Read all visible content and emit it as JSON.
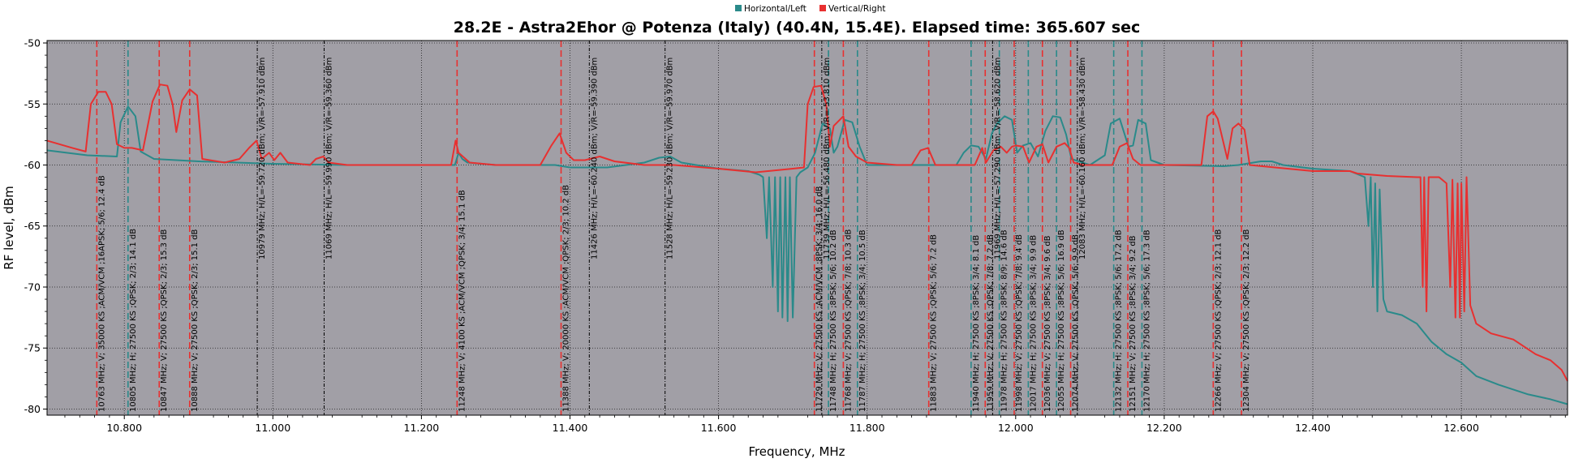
{
  "colors": {
    "horizontal": "#2a8a8a",
    "vertical": "#e83030",
    "plot_background": "#a19fa6",
    "grid": "#000000",
    "frame": "#000000"
  },
  "chart_data": {
    "type": "line",
    "title": "28.2E - Astra2Ehor @ Potenza (Italy) (40.4N, 15.4E). Elapsed time: 365.607 sec",
    "xlabel": "Frequency, MHz",
    "ylabel": "RF level, dBm",
    "xlim": [
      10696,
      12743
    ],
    "ylim": [
      -80.5,
      -49.8
    ],
    "x_ticks": [
      10800,
      11000,
      11200,
      11400,
      11600,
      11800,
      12000,
      12200,
      12400,
      12600
    ],
    "x_tick_labels": [
      "10.800",
      "11.000",
      "11.200",
      "11.400",
      "11.600",
      "11.800",
      "12.000",
      "12.200",
      "12.400",
      "12.600"
    ],
    "y_ticks": [
      -50,
      -55,
      -60,
      -65,
      -70,
      -75,
      -80
    ],
    "y_tick_labels": [
      "-50",
      "-55",
      "-60",
      "-65",
      "-70",
      "-75",
      "-80"
    ],
    "grid": true,
    "legend": "top-center",
    "series": [
      {
        "name": "Horizontal/Left",
        "color": "#2a8a8a",
        "points": [
          [
            10696,
            -58.8
          ],
          [
            10750,
            -59.2
          ],
          [
            10790,
            -59.3
          ],
          [
            10795,
            -56.5
          ],
          [
            10805,
            -55.2
          ],
          [
            10815,
            -56.0
          ],
          [
            10822,
            -58.9
          ],
          [
            10840,
            -59.5
          ],
          [
            10900,
            -59.7
          ],
          [
            11000,
            -59.9
          ],
          [
            11100,
            -60.0
          ],
          [
            11200,
            -60.0
          ],
          [
            11245,
            -60.0
          ],
          [
            11250,
            -59.0
          ],
          [
            11255,
            -59.5
          ],
          [
            11262,
            -59.8
          ],
          [
            11300,
            -60.0
          ],
          [
            11380,
            -60.0
          ],
          [
            11400,
            -60.2
          ],
          [
            11450,
            -60.2
          ],
          [
            11500,
            -59.8
          ],
          [
            11520,
            -59.4
          ],
          [
            11535,
            -59.3
          ],
          [
            11550,
            -59.8
          ],
          [
            11600,
            -60.3
          ],
          [
            11640,
            -60.5
          ],
          [
            11655,
            -60.8
          ],
          [
            11660,
            -61.0
          ],
          [
            11665,
            -66.0
          ],
          [
            11668,
            -61.0
          ],
          [
            11673,
            -70.0
          ],
          [
            11676,
            -61.0
          ],
          [
            11680,
            -72.0
          ],
          [
            11683,
            -61.0
          ],
          [
            11686,
            -72.5
          ],
          [
            11690,
            -61.0
          ],
          [
            11693,
            -72.8
          ],
          [
            11696,
            -61.0
          ],
          [
            11700,
            -72.5
          ],
          [
            11705,
            -61.0
          ],
          [
            11710,
            -60.6
          ],
          [
            11720,
            -60.2
          ],
          [
            11730,
            -59.0
          ],
          [
            11740,
            -56.6
          ],
          [
            11750,
            -57.0
          ],
          [
            11755,
            -59.0
          ],
          [
            11760,
            -58.5
          ],
          [
            11770,
            -56.3
          ],
          [
            11780,
            -56.5
          ],
          [
            11790,
            -58.5
          ],
          [
            11800,
            -60.0
          ],
          [
            11850,
            -60.0
          ],
          [
            11920,
            -60.0
          ],
          [
            11930,
            -59.0
          ],
          [
            11940,
            -58.4
          ],
          [
            11950,
            -58.5
          ],
          [
            11960,
            -59.5
          ],
          [
            11968,
            -57.4
          ],
          [
            11975,
            -56.6
          ],
          [
            11985,
            -56.0
          ],
          [
            11995,
            -56.3
          ],
          [
            12002,
            -59.0
          ],
          [
            12010,
            -58.4
          ],
          [
            12020,
            -58.2
          ],
          [
            12030,
            -59.3
          ],
          [
            12040,
            -57.2
          ],
          [
            12050,
            -56.0
          ],
          [
            12060,
            -56.1
          ],
          [
            12068,
            -57.5
          ],
          [
            12075,
            -59.5
          ],
          [
            12085,
            -59.7
          ],
          [
            12100,
            -60.0
          ],
          [
            12120,
            -59.2
          ],
          [
            12128,
            -56.6
          ],
          [
            12140,
            -56.2
          ],
          [
            12152,
            -58.5
          ],
          [
            12158,
            -58.4
          ],
          [
            12165,
            -56.3
          ],
          [
            12175,
            -56.6
          ],
          [
            12182,
            -59.6
          ],
          [
            12200,
            -60.0
          ],
          [
            12280,
            -60.1
          ],
          [
            12300,
            -60.0
          ],
          [
            12310,
            -59.9
          ],
          [
            12330,
            -59.7
          ],
          [
            12345,
            -59.7
          ],
          [
            12360,
            -60.0
          ],
          [
            12400,
            -60.3
          ],
          [
            12450,
            -60.5
          ],
          [
            12470,
            -61.0
          ],
          [
            12475,
            -65.0
          ],
          [
            12478,
            -61.0
          ],
          [
            12481,
            -70.0
          ],
          [
            12484,
            -61.5
          ],
          [
            12487,
            -72.0
          ],
          [
            12490,
            -62.0
          ],
          [
            12495,
            -71.0
          ],
          [
            12500,
            -72.0
          ],
          [
            12520,
            -72.3
          ],
          [
            12540,
            -73.0
          ],
          [
            12560,
            -74.5
          ],
          [
            12580,
            -75.5
          ],
          [
            12600,
            -76.2
          ],
          [
            12620,
            -77.3
          ],
          [
            12650,
            -78.0
          ],
          [
            12690,
            -78.8
          ],
          [
            12720,
            -79.2
          ],
          [
            12743,
            -79.6
          ]
        ]
      },
      {
        "name": "Vertical/Right",
        "color": "#e83030",
        "points": [
          [
            10696,
            -58.0
          ],
          [
            10730,
            -58.6
          ],
          [
            10748,
            -58.9
          ],
          [
            10755,
            -55.0
          ],
          [
            10765,
            -54.0
          ],
          [
            10775,
            -54.0
          ],
          [
            10783,
            -55.0
          ],
          [
            10790,
            -58.3
          ],
          [
            10800,
            -58.6
          ],
          [
            10810,
            -58.6
          ],
          [
            10825,
            -58.8
          ],
          [
            10838,
            -54.8
          ],
          [
            10848,
            -53.4
          ],
          [
            10858,
            -53.5
          ],
          [
            10865,
            -55.0
          ],
          [
            10870,
            -57.3
          ],
          [
            10878,
            -54.7
          ],
          [
            10888,
            -53.8
          ],
          [
            10898,
            -54.3
          ],
          [
            10905,
            -59.5
          ],
          [
            10935,
            -59.8
          ],
          [
            10955,
            -59.5
          ],
          [
            10968,
            -58.6
          ],
          [
            10978,
            -58.0
          ],
          [
            10985,
            -59.5
          ],
          [
            10995,
            -59.0
          ],
          [
            11002,
            -59.6
          ],
          [
            11010,
            -59.0
          ],
          [
            11020,
            -59.8
          ],
          [
            11050,
            -60.0
          ],
          [
            11058,
            -59.5
          ],
          [
            11068,
            -59.3
          ],
          [
            11075,
            -59.8
          ],
          [
            11100,
            -60.0
          ],
          [
            11240,
            -60.0
          ],
          [
            11246,
            -58.0
          ],
          [
            11250,
            -59.0
          ],
          [
            11265,
            -59.8
          ],
          [
            11300,
            -60.0
          ],
          [
            11360,
            -60.0
          ],
          [
            11375,
            -58.4
          ],
          [
            11386,
            -57.4
          ],
          [
            11395,
            -59.0
          ],
          [
            11405,
            -59.6
          ],
          [
            11420,
            -59.6
          ],
          [
            11440,
            -59.3
          ],
          [
            11460,
            -59.7
          ],
          [
            11500,
            -60.0
          ],
          [
            11540,
            -60.0
          ],
          [
            11600,
            -60.3
          ],
          [
            11650,
            -60.6
          ],
          [
            11700,
            -60.3
          ],
          [
            11715,
            -60.2
          ],
          [
            11720,
            -55.0
          ],
          [
            11728,
            -53.6
          ],
          [
            11738,
            -53.5
          ],
          [
            11745,
            -55.0
          ],
          [
            11750,
            -58.5
          ],
          [
            11755,
            -56.8
          ],
          [
            11768,
            -56.0
          ],
          [
            11775,
            -58.5
          ],
          [
            11785,
            -59.3
          ],
          [
            11800,
            -59.8
          ],
          [
            11840,
            -60.0
          ],
          [
            11860,
            -60.0
          ],
          [
            11872,
            -58.8
          ],
          [
            11882,
            -58.6
          ],
          [
            11892,
            -60.0
          ],
          [
            11945,
            -60.0
          ],
          [
            11955,
            -58.6
          ],
          [
            11960,
            -59.8
          ],
          [
            11970,
            -58.8
          ],
          [
            11980,
            -58.5
          ],
          [
            11988,
            -59.0
          ],
          [
            11995,
            -58.5
          ],
          [
            12000,
            -58.4
          ],
          [
            12010,
            -58.5
          ],
          [
            12018,
            -59.8
          ],
          [
            12028,
            -58.5
          ],
          [
            12036,
            -58.3
          ],
          [
            12044,
            -59.8
          ],
          [
            12055,
            -58.5
          ],
          [
            12066,
            -58.2
          ],
          [
            12072,
            -58.6
          ],
          [
            12078,
            -59.8
          ],
          [
            12090,
            -60.0
          ],
          [
            12130,
            -60.0
          ],
          [
            12140,
            -58.5
          ],
          [
            12150,
            -58.2
          ],
          [
            12158,
            -59.5
          ],
          [
            12168,
            -60.0
          ],
          [
            12250,
            -60.0
          ],
          [
            12258,
            -56.0
          ],
          [
            12266,
            -55.6
          ],
          [
            12272,
            -56.2
          ],
          [
            12285,
            -59.5
          ],
          [
            12292,
            -57.0
          ],
          [
            12300,
            -56.6
          ],
          [
            12308,
            -57.1
          ],
          [
            12315,
            -60.0
          ],
          [
            12400,
            -60.5
          ],
          [
            12430,
            -60.5
          ],
          [
            12450,
            -60.5
          ],
          [
            12460,
            -60.7
          ],
          [
            12500,
            -60.9
          ],
          [
            12540,
            -61.0
          ],
          [
            12545,
            -61.0
          ],
          [
            12548,
            -70.0
          ],
          [
            12550,
            -61.0
          ],
          [
            12553,
            -72.0
          ],
          [
            12556,
            -61.0
          ],
          [
            12570,
            -61.0
          ],
          [
            12580,
            -61.5
          ],
          [
            12585,
            -70.0
          ],
          [
            12588,
            -61.2
          ],
          [
            12592,
            -72.5
          ],
          [
            12595,
            -61.5
          ],
          [
            12598,
            -72.5
          ],
          [
            12600,
            -61.5
          ],
          [
            12604,
            -72.0
          ],
          [
            12607,
            -61.0
          ],
          [
            12612,
            -71.5
          ],
          [
            12620,
            -73.0
          ],
          [
            12640,
            -73.8
          ],
          [
            12670,
            -74.3
          ],
          [
            12700,
            -75.5
          ],
          [
            12720,
            -76.0
          ],
          [
            12735,
            -76.8
          ],
          [
            12743,
            -77.7
          ]
        ]
      }
    ],
    "markers": [
      {
        "x": 10763,
        "pol": "V",
        "text": "10763 MHz; V; 35000 KS ;ACM/VCM ;16APSK; 5/6; 12.4 dB"
      },
      {
        "x": 10805,
        "pol": "H",
        "text": "10805 MHz; H; 27500 KS ;QPSK; 2/3; 14.1 dB"
      },
      {
        "x": 10847,
        "pol": "V",
        "text": "10847 MHz; V; 27500 KS ;QPSK; 2/3; 15.3 dB"
      },
      {
        "x": 10888,
        "pol": "V",
        "text": "10888 MHz; V; 27500 KS ;QPSK; 2/3; 15.1 dB"
      },
      {
        "x": 10979,
        "pol": "N",
        "text": "10979 MHz;  H/L=-59.720 dBm;  V/R=-57.910 dBm"
      },
      {
        "x": 11069,
        "pol": "N",
        "text": "11069 MHz;  H/L=-59.990 dBm;  V/R=-59.360 dBm"
      },
      {
        "x": 11248,
        "pol": "V",
        "text": "11248 MHz; V; 4100 KS ;ACM/VCM ;QPSK; 3/4; 15.1 dB"
      },
      {
        "x": 11388,
        "pol": "V",
        "text": "11388 MHz; V; 20000 KS ;ACM/VCM ;QPSK; 2/3; 10.2 dB"
      },
      {
        "x": 11426,
        "pol": "N",
        "text": "11426 MHz;  H/L=-60.240 dBm;  V/R=-59.390 dBm"
      },
      {
        "x": 11528,
        "pol": "N",
        "text": "11528 MHz;  H/L=-59.230 dBm;  V/R=-59.970 dBm"
      },
      {
        "x": 11729,
        "pol": "V",
        "text": "11729 MHz; V; 27500 KS ;ACM/VCM ;8PSK; 3/4; 16.0 dB"
      },
      {
        "x": 11739,
        "pol": "N",
        "text": "11739 MHz;  H/L=-56.480 dBm;  V/R=-53.810 dBm"
      },
      {
        "x": 11748,
        "pol": "H",
        "text": "11748 MHz; H; 27500 KS ;8PSK; 5/6; 10.2 dB"
      },
      {
        "x": 11768,
        "pol": "V",
        "text": "11768 MHz; V; 27500 KS ;QPSK; 7/8; 10.3 dB"
      },
      {
        "x": 11787,
        "pol": "H",
        "text": "11787 MHz; H; 27500 KS ;8PSK; 3/4; 10.5 dB"
      },
      {
        "x": 11883,
        "pol": "V",
        "text": "11883 MHz; V; 27500 KS ;QPSK; 5/6; 7.2 dB"
      },
      {
        "x": 11940,
        "pol": "H",
        "text": "11940 MHz; H; 27500 KS ;8PSK; 3/4; 8.1 dB"
      },
      {
        "x": 11959,
        "pol": "V",
        "text": "11959 MHz; V; 27500 KS ;QPSK; 7/8; 7.2 dB"
      },
      {
        "x": 11969,
        "pol": "N",
        "text": "11969 MHz;  H/L=-57.290 dBm;  V/R=-58.620 dBm"
      },
      {
        "x": 11978,
        "pol": "H",
        "text": "11978 MHz; H; 27500 KS ;8PSK; 8/9; 14.6 dB"
      },
      {
        "x": 11998,
        "pol": "V",
        "text": "11998 MHz; V; 27500 KS ;QPSK; 7/8; 9.4 dB"
      },
      {
        "x": 12017,
        "pol": "H",
        "text": "12017 MHz; H; 27500 KS ;8PSK; 3/4; 9.9 dB"
      },
      {
        "x": 12036,
        "pol": "V",
        "text": "12036 MHz; V; 27500 KS ;8PSK; 3/4; 9.6 dB"
      },
      {
        "x": 12055,
        "pol": "H",
        "text": "12055 MHz; H; 27500 KS ;8PSK; 5/6; 16.9 dB"
      },
      {
        "x": 12074,
        "pol": "V",
        "text": "12074 MHz; V; 27500 KS ;QPSK; 5/6; 9.9 dB"
      },
      {
        "x": 12083,
        "pol": "N",
        "text": "12083 MHz;  H/L=-60.160 dBm;  V/R=-58.430 dBm"
      },
      {
        "x": 12132,
        "pol": "H",
        "text": "12132 MHz; H; 27500 KS ;8PSK; 5/6; 17.2 dB"
      },
      {
        "x": 12151,
        "pol": "V",
        "text": "12151 MHz; V; 27500 KS ;8PSK; 3/4; 9.2 dB"
      },
      {
        "x": 12170,
        "pol": "H",
        "text": "12170 MHz; H; 27500 KS ;8PSK; 5/6; 17.3 dB"
      },
      {
        "x": 12266,
        "pol": "V",
        "text": "12266 MHz; V; 27500 KS ;QPSK; 2/3; 12.1 dB"
      },
      {
        "x": 12304,
        "pol": "V",
        "text": "12304 MHz; V; 27500 KS ;QPSK; 2/3; 12.2 dB"
      }
    ]
  }
}
